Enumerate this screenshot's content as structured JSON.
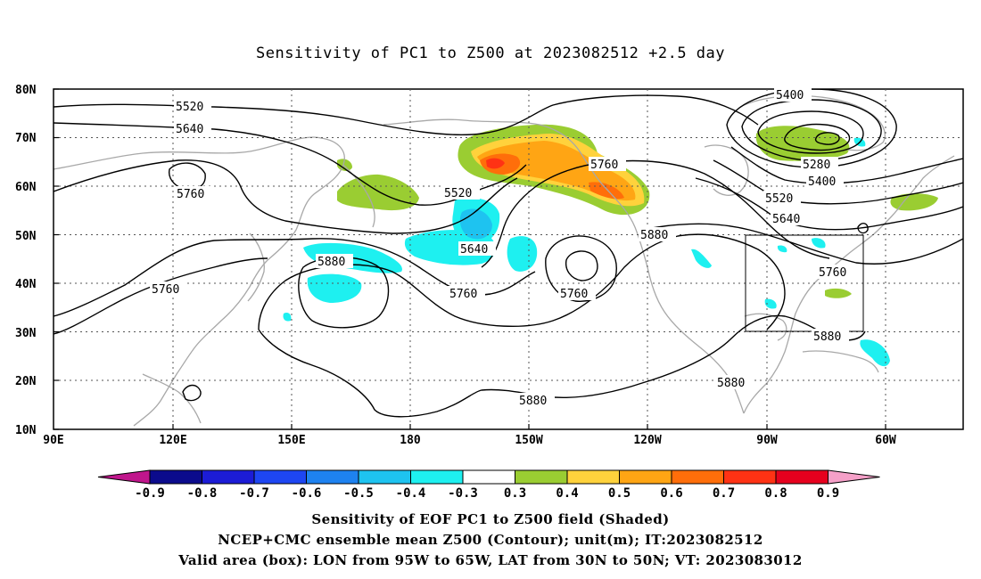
{
  "title": "Sensitivity of PC1 to Z500 at 2023082512 +2.5 day",
  "lat_labels": [
    "80N",
    "70N",
    "60N",
    "50N",
    "40N",
    "30N",
    "20N",
    "10N"
  ],
  "lon_labels": [
    "90E",
    "120E",
    "150E",
    "180",
    "150W",
    "120W",
    "90W",
    "60W"
  ],
  "contour_labels": {
    "c5400a": "5400",
    "c5520a": "5520",
    "c5640a": "5640",
    "c5760a": "5760",
    "c5760b": "5760",
    "c5760c": "5760",
    "c5760d": "5760",
    "c5760e": "5760",
    "c5760f": "5760",
    "c5520b": "5520",
    "c5640b": "5640",
    "c5880a": "5880",
    "c5880b": "5880",
    "c5880c": "5880",
    "c5880d": "5880",
    "c5880e": "5880",
    "c5280": "5280",
    "c5400b": "5400",
    "c5520c": "5520",
    "c5640c": "5640"
  },
  "colorbar": {
    "labels": [
      "-0.9",
      "-0.8",
      "-0.7",
      "-0.6",
      "-0.5",
      "-0.4",
      "-0.3",
      "0.3",
      "0.4",
      "0.5",
      "0.6",
      "0.7",
      "0.8",
      "0.9"
    ],
    "colors": [
      "#0b0b8c",
      "#1c1cd6",
      "#1e46f2",
      "#1e82f0",
      "#1ec3f0",
      "#1ef0f0",
      "#ffffff",
      "#9acd32",
      "#ffd23c",
      "#ffa514",
      "#ff6e0a",
      "#ff3214",
      "#e6001e"
    ],
    "left_arrow_color": "#c0168c",
    "right_arrow_color": "#f5a0c8"
  },
  "captions": {
    "line1": "Sensitivity of EOF PC1 to Z500 field (Shaded)",
    "line2": "NCEP+CMC ensemble mean Z500 (Contour); unit(m); IT:2023082512",
    "line3": "Valid area (box): LON from 95W to 65W, LAT from 30N to 50N; VT: 2023083012"
  }
}
